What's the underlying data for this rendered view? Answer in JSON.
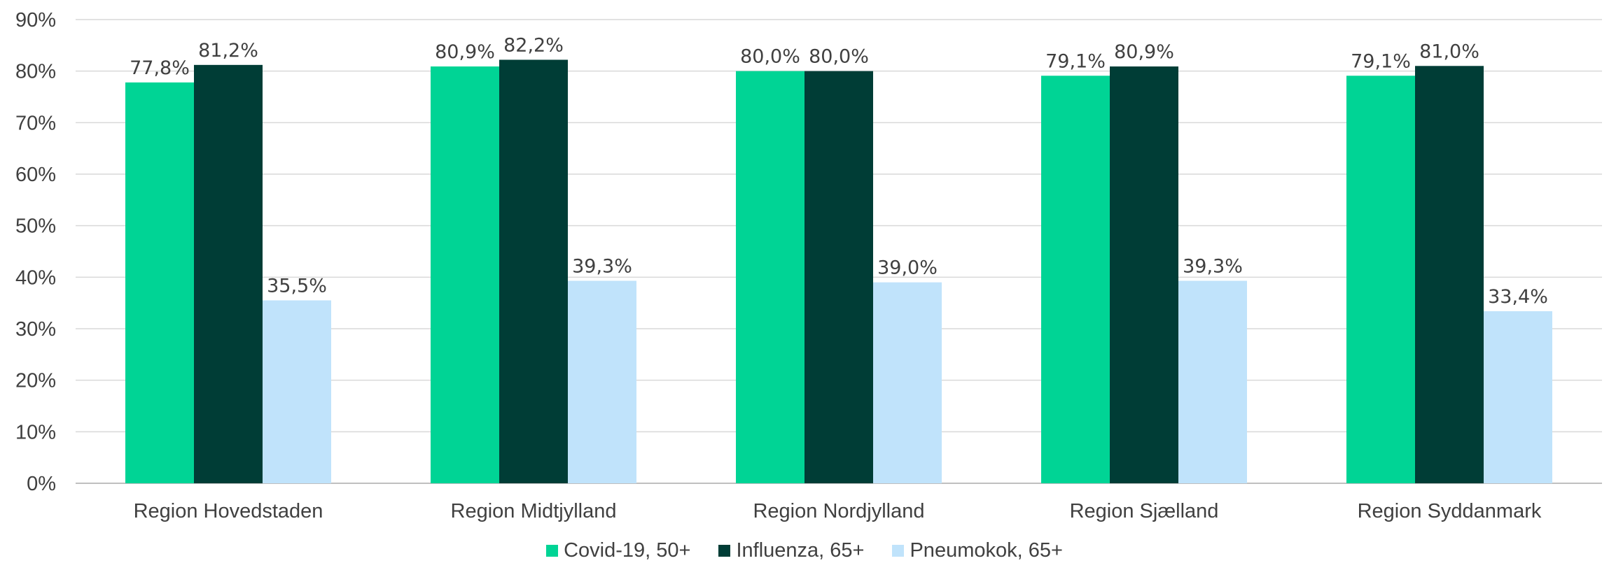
{
  "chart_data": {
    "type": "bar",
    "categories": [
      "Region Hovedstaden",
      "Region Midtjylland",
      "Region Nordjylland",
      "Region Sjælland",
      "Region Syddanmark"
    ],
    "series": [
      {
        "name": "Covid-19, 50+",
        "color": "#00d495",
        "values": [
          77.8,
          80.9,
          80.0,
          79.1,
          79.1
        ],
        "labels": [
          "77,8%",
          "80,9%",
          "80,0%",
          "79,1%",
          "79,1%"
        ]
      },
      {
        "name": "Influenza, 65+",
        "color": "#003d36",
        "values": [
          81.2,
          82.2,
          80.0,
          80.9,
          81.0
        ],
        "labels": [
          "81,2%",
          "82,2%",
          "80,0%",
          "80,9%",
          "81,0%"
        ]
      },
      {
        "name": "Pneumokok, 65+",
        "color": "#c0e3fb",
        "values": [
          35.5,
          39.3,
          39.0,
          39.3,
          33.4
        ],
        "labels": [
          "35,5%",
          "39,3%",
          "39,0%",
          "39,3%",
          "33,4%"
        ]
      }
    ],
    "ylim": [
      0,
      90
    ],
    "yticks": [
      "0%",
      "10%",
      "20%",
      "30%",
      "40%",
      "50%",
      "60%",
      "70%",
      "80%",
      "90%"
    ],
    "grid": true,
    "legend_position": "bottom"
  }
}
